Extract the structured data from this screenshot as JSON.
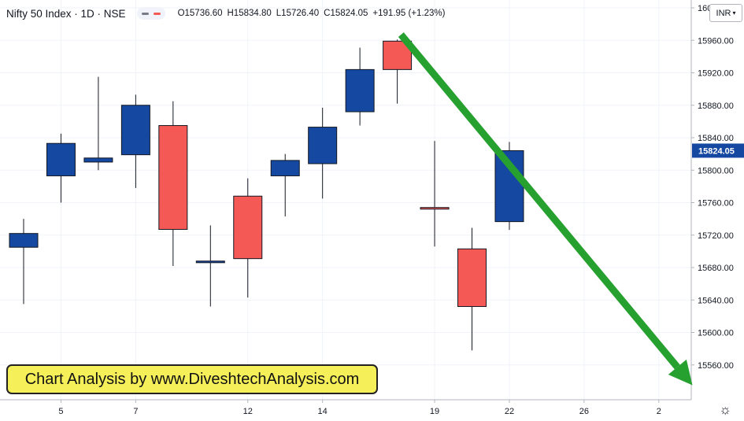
{
  "header": {
    "title": "Nifty 50 Index · 1D · NSE",
    "open_label": "O",
    "open": "15736.60",
    "high_label": "H",
    "high": "15834.80",
    "low_label": "L",
    "low": "15726.40",
    "close_label": "C",
    "close": "15824.05",
    "change": "+191.95 (+1.23%)"
  },
  "currency": "INR",
  "banner_text": "Chart Analysis by www.DiveshtechAnalysis.com",
  "colors": {
    "up": "#1548a0",
    "down": "#f45956",
    "arrow": "#26a02f",
    "price_label_bg": "#1548a0",
    "banner_bg": "#f5f05a"
  },
  "chart_data": {
    "type": "candlestick",
    "ylim": [
      15520,
      16000
    ],
    "yticks": [
      15560,
      15600,
      15640,
      15680,
      15720,
      15760,
      15800,
      15840,
      15880,
      15920,
      15960,
      16000
    ],
    "ytick_labels": [
      "15560.00",
      "15600.00",
      "15640.00",
      "15680.00",
      "15720.00",
      "15760.00",
      "15800.00",
      "15840.00",
      "15880.00",
      "15920.00",
      "15960.00",
      "16000.00"
    ],
    "xticks": [
      {
        "label": "5",
        "slot": 1
      },
      {
        "label": "7",
        "slot": 3
      },
      {
        "label": "12",
        "slot": 6
      },
      {
        "label": "14",
        "slot": 8
      },
      {
        "label": "19",
        "slot": 11
      },
      {
        "label": "22",
        "slot": 13
      },
      {
        "label": "26",
        "slot": 15
      },
      {
        "label": "2",
        "slot": 17
      }
    ],
    "slot_count": 18.5,
    "candles": [
      {
        "slot": 0,
        "o": 15705,
        "h": 15740,
        "l": 15635,
        "c": 15722
      },
      {
        "slot": 1,
        "o": 15793,
        "h": 15845,
        "l": 15760,
        "c": 15833
      },
      {
        "slot": 2,
        "o": 15810,
        "h": 15915,
        "l": 15800,
        "c": 15815
      },
      {
        "slot": 3,
        "o": 15819,
        "h": 15893,
        "l": 15778,
        "c": 15880
      },
      {
        "slot": 4,
        "o": 15855,
        "h": 15885,
        "l": 15682,
        "c": 15727
      },
      {
        "slot": 5,
        "o": 15686,
        "h": 15732,
        "l": 15632,
        "c": 15688
      },
      {
        "slot": 6,
        "o": 15768,
        "h": 15790,
        "l": 15643,
        "c": 15691
      },
      {
        "slot": 7,
        "o": 15793,
        "h": 15820,
        "l": 15743,
        "c": 15812
      },
      {
        "slot": 8,
        "o": 15808,
        "h": 15877,
        "l": 15765,
        "c": 15853
      },
      {
        "slot": 9,
        "o": 15872,
        "h": 15951,
        "l": 15855,
        "c": 15924
      },
      {
        "slot": 10,
        "o": 15959,
        "h": 15961,
        "l": 15882,
        "c": 15924
      },
      {
        "slot": 11,
        "o": 15754,
        "h": 15836,
        "l": 15706,
        "c": 15752
      },
      {
        "slot": 12,
        "o": 15703,
        "h": 15729,
        "l": 15578,
        "c": 15632
      },
      {
        "slot": 13,
        "o": 15736.6,
        "h": 15834.8,
        "l": 15726.4,
        "c": 15824.05
      }
    ],
    "last_price_label": "15824.05",
    "annotation_arrow": {
      "from": {
        "slot": 10.1,
        "price": 15967
      },
      "to": {
        "slot": 17.9,
        "price": 15535
      }
    }
  }
}
